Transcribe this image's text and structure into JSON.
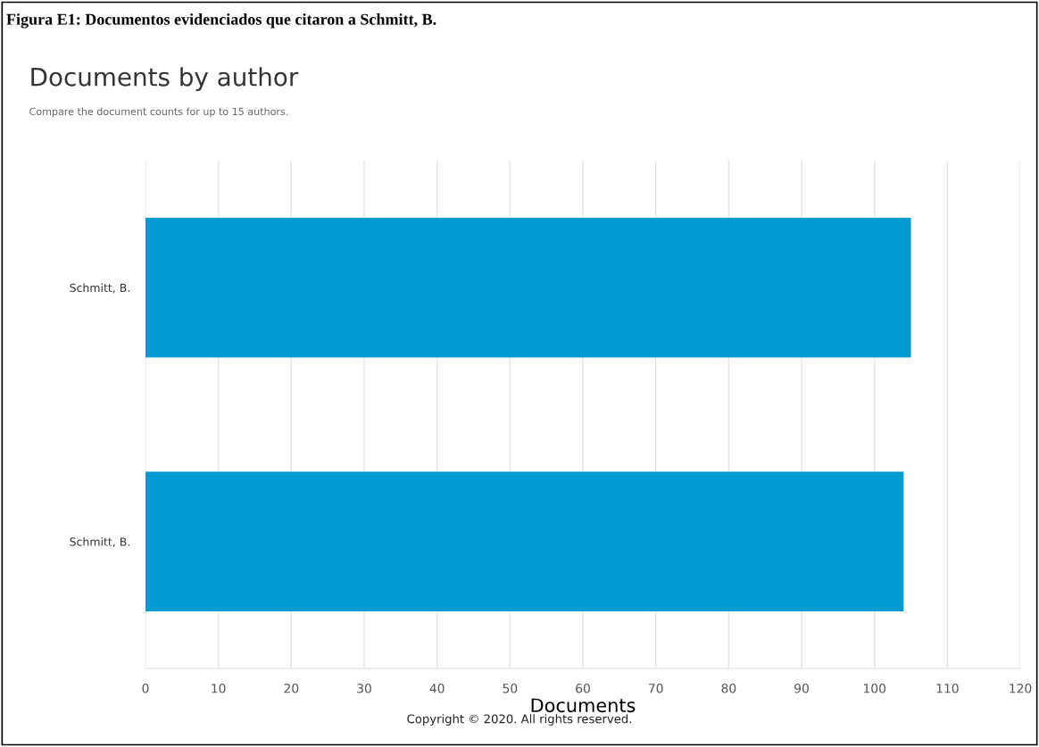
{
  "chart_data": {
    "type": "bar",
    "orientation": "horizontal",
    "annotations": [
      "Figura E1: Documentos evidenciados que citaron a Schmitt, B.",
      "Copyright © 2020. All rights reserved."
    ],
    "title": "Documents by author",
    "subtitle": "Compare the document counts for up to 15 authors.",
    "xlabel": "Documents",
    "categories": [
      "Schmitt, B.",
      "Schmitt, B."
    ],
    "values": [
      105,
      104
    ],
    "color": "#019bd1",
    "xlim": [
      0,
      120
    ],
    "xticks": [
      0,
      10,
      20,
      30,
      40,
      50,
      60,
      70,
      80,
      90,
      100,
      110,
      120
    ],
    "grid": "x"
  }
}
